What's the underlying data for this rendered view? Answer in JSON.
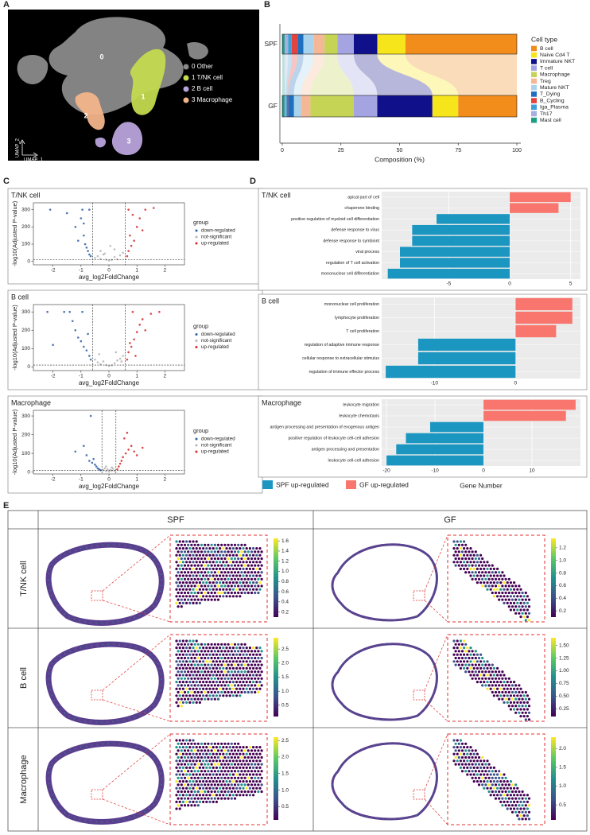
{
  "panel_labels": [
    "A",
    "B",
    "C",
    "D",
    "E"
  ],
  "umap": {
    "xlabel": "UMAP_1",
    "ylabel": "UMAP_2",
    "clusters": [
      {
        "id": "0",
        "label": "0 Other",
        "color": "#8a8a8a"
      },
      {
        "id": "1",
        "label": "1 T/NK cell",
        "color": "#c3d94e"
      },
      {
        "id": "2",
        "label": "2 B cell",
        "color": "#b9a3dc"
      },
      {
        "id": "3",
        "label": "3 Macrophage",
        "color": "#f3b48a"
      }
    ]
  },
  "composition": {
    "type": "bar",
    "orientation": "horizontal",
    "stacked": true,
    "categories": [
      "SPF",
      "GF"
    ],
    "legend_title": "Cell type",
    "xlabel": "Composition (%)",
    "xlim": [
      0,
      100
    ],
    "xticks": [
      0,
      25,
      50,
      75,
      100
    ],
    "series": [
      {
        "name": "Mast cell",
        "color": "#1a9e86",
        "values": [
          1,
          1
        ]
      },
      {
        "name": "Th17",
        "color": "#a7aee0",
        "values": [
          1.5,
          0.5
        ]
      },
      {
        "name": "Iga_Plasma",
        "color": "#3d9fd6",
        "values": [
          1.5,
          0.5
        ]
      },
      {
        "name": "B_Cycling",
        "color": "#e2433f",
        "values": [
          2.5,
          0.5
        ]
      },
      {
        "name": "T_Dying",
        "color": "#1f6fbf",
        "values": [
          2.5,
          2.5
        ]
      },
      {
        "name": "Mature NKT",
        "color": "#a9d3ec",
        "values": [
          4.5,
          3
        ]
      },
      {
        "name": "Treg",
        "color": "#f5b896",
        "values": [
          4.5,
          4
        ]
      },
      {
        "name": "Macrophage",
        "color": "#c5d455",
        "values": [
          5.5,
          18.5
        ]
      },
      {
        "name": "T cell",
        "color": "#a4a4e3",
        "values": [
          7,
          10
        ]
      },
      {
        "name": "Immature NKT",
        "color": "#10108a",
        "values": [
          10,
          23.5
        ]
      },
      {
        "name": "Naive Cd4 T",
        "color": "#f7e51b",
        "values": [
          12,
          11
        ]
      },
      {
        "name": "B cell",
        "color": "#f28c1b",
        "values": [
          47.5,
          25
        ]
      }
    ]
  },
  "volcano": [
    {
      "title": "T/NK cell",
      "type": "scatter",
      "xlabel": "avg_log2FoldChange",
      "ylabel": "-log10(Adjusted P-value)",
      "xlim": [
        -2.7,
        2.7
      ],
      "xticks": [
        -2,
        -1,
        0,
        1,
        2
      ],
      "ylim": [
        -20,
        340
      ],
      "yticks": [
        0,
        100,
        200,
        300
      ],
      "vlines": [
        -0.58,
        0.58
      ],
      "hline": 10,
      "legend_title": "group",
      "series": [
        {
          "name": "down-regulated",
          "color": "#2d5fa6",
          "x": [
            -2.1,
            -1.5,
            -1.2,
            -1.0,
            -0.9,
            -0.85,
            -0.8,
            -0.75,
            -0.7,
            -0.65,
            -0.9,
            -1.1,
            -0.95,
            -0.7
          ],
          "y": [
            300,
            280,
            200,
            250,
            150,
            100,
            80,
            60,
            40,
            30,
            220,
            120,
            300,
            300
          ]
        },
        {
          "name": "not-significant",
          "color": "#b5b5b5",
          "x": [
            -0.5,
            -0.4,
            -0.3,
            -0.2,
            -0.1,
            0,
            0.1,
            0.2,
            0.3,
            0.4,
            0.5,
            -0.3,
            0.2,
            0.05,
            -0.15
          ],
          "y": [
            20,
            30,
            15,
            40,
            10,
            5,
            8,
            25,
            12,
            35,
            50,
            60,
            70,
            90,
            45
          ]
        },
        {
          "name": "up-regulated",
          "color": "#d42a2a",
          "x": [
            0.65,
            0.7,
            0.8,
            0.9,
            1.0,
            1.1,
            1.3,
            1.6,
            0.75,
            0.85,
            1.2,
            0.7
          ],
          "y": [
            30,
            60,
            90,
            120,
            200,
            250,
            300,
            310,
            150,
            270,
            180,
            300
          ]
        }
      ]
    },
    {
      "title": "B cell",
      "type": "scatter",
      "xlabel": "avg_log2FoldChange",
      "ylabel": "-log10(Adjusted P-value)",
      "xlim": [
        -2.7,
        2.7
      ],
      "xticks": [
        -2,
        -1,
        0,
        1,
        2
      ],
      "ylim": [
        -20,
        340
      ],
      "yticks": [
        0,
        100,
        200,
        300
      ],
      "vlines": [
        -0.58,
        0.58
      ],
      "hline": 10,
      "legend_title": "group",
      "series": [
        {
          "name": "down-regulated",
          "color": "#2d5fa6",
          "x": [
            -2.2,
            -2.0,
            -1.6,
            -1.4,
            -1.2,
            -1.1,
            -1.0,
            -0.9,
            -0.8,
            -0.7,
            -0.65,
            -1.3,
            -0.95,
            -0.75
          ],
          "y": [
            300,
            120,
            300,
            300,
            200,
            160,
            140,
            110,
            90,
            60,
            40,
            250,
            300,
            180
          ]
        },
        {
          "name": "not-significant",
          "color": "#b5b5b5",
          "x": [
            -0.5,
            -0.4,
            -0.3,
            -0.2,
            -0.1,
            0,
            0.1,
            0.2,
            0.3,
            0.4,
            0.5,
            -0.35,
            0.25,
            0.45
          ],
          "y": [
            40,
            25,
            15,
            30,
            10,
            5,
            8,
            20,
            35,
            45,
            60,
            70,
            80,
            30
          ]
        },
        {
          "name": "up-regulated",
          "color": "#d42a2a",
          "x": [
            0.65,
            0.7,
            0.8,
            0.9,
            1.0,
            1.1,
            1.2,
            1.5,
            1.8,
            0.75,
            0.85,
            1.3,
            0.95
          ],
          "y": [
            40,
            80,
            110,
            150,
            190,
            230,
            260,
            290,
            300,
            130,
            300,
            200,
            60
          ]
        }
      ]
    },
    {
      "title": "Macrophage",
      "type": "scatter",
      "xlabel": "avg_log2FoldChange",
      "ylabel": "-log10(Adjusted P-value)",
      "xlim": [
        -2.7,
        2.7
      ],
      "xticks": [
        -2,
        -1,
        0,
        1,
        2
      ],
      "ylim": [
        -10,
        330
      ],
      "yticks": [
        0,
        100,
        200,
        300
      ],
      "vlines": [
        -0.25,
        0.25
      ],
      "hline": 10,
      "legend_title": "group",
      "series": [
        {
          "name": "down-regulated",
          "color": "#2d5fa6",
          "x": [
            -1.2,
            -0.9,
            -0.8,
            -0.7,
            -0.6,
            -0.5,
            -0.45,
            -0.4,
            -0.35,
            -0.3,
            -0.55,
            -0.65
          ],
          "y": [
            110,
            140,
            90,
            60,
            50,
            40,
            30,
            20,
            15,
            10,
            70,
            300
          ]
        },
        {
          "name": "not-significant",
          "color": "#b5b5b5",
          "x": [
            -0.2,
            -0.15,
            -0.1,
            -0.05,
            0,
            0.05,
            0.1,
            0.15,
            0.2,
            -0.1,
            0.1
          ],
          "y": [
            10,
            20,
            5,
            15,
            3,
            12,
            8,
            18,
            6,
            30,
            25
          ]
        },
        {
          "name": "up-regulated",
          "color": "#d42a2a",
          "x": [
            0.3,
            0.35,
            0.4,
            0.45,
            0.5,
            0.6,
            0.7,
            0.8,
            0.9,
            1.0,
            1.2,
            0.55,
            0.65
          ],
          "y": [
            15,
            30,
            45,
            60,
            80,
            100,
            120,
            140,
            110,
            90,
            130,
            180,
            210
          ]
        }
      ]
    }
  ],
  "go": [
    {
      "title": "T/NK cell",
      "type": "bar",
      "categories": [
        "apical part of cell",
        "chaperone binding",
        "positive regulation of myeloid cell differentiation",
        "defense response to virus",
        "defense response to symbiont",
        "viral process",
        "regulation of T cell activation",
        "mononuclear cell differentiation"
      ],
      "values": [
        5,
        4,
        -6,
        -8,
        -8,
        -9,
        -9,
        -10
      ],
      "xlim": [
        -10.5,
        5.8
      ],
      "xticks": [
        -5,
        0,
        5
      ]
    },
    {
      "title": "B cell",
      "type": "bar",
      "categories": [
        "mononuclear cell proliferation",
        "lymphocyte proliferation",
        "T cell proliferation",
        "regulation of adaptive immune response",
        "cellular response to extracellular stimulus",
        "regulation of immune effector process"
      ],
      "values": [
        7,
        7,
        5,
        -12,
        -12,
        -16
      ],
      "xlim": [
        -16.5,
        8
      ],
      "xticks": [
        -10,
        0
      ]
    },
    {
      "title": "Macrophage",
      "type": "bar",
      "categories": [
        "leukocyte migration",
        "leukocyte chemotaxis",
        "antigen processing and presentation of exogenous antigen",
        "positive regulation of leukocyte cell-cell adhesion",
        "antigen processing and presentation",
        "leukocyte cell-cell adhesion"
      ],
      "values": [
        19,
        17,
        -11,
        -16,
        -18,
        -20
      ],
      "xlim": [
        -21,
        20
      ],
      "xticks": [
        -20,
        -10,
        0,
        10
      ]
    }
  ],
  "go_legend": [
    {
      "name": "SPF up-regulated",
      "color": "#1b96c1"
    },
    {
      "name": "GF up-regulated",
      "color": "#f8766d"
    }
  ],
  "go_xlabel": "Gene Number",
  "spatial": {
    "columns": [
      "SPF",
      "GF"
    ],
    "rows": [
      "T/NK cell",
      "B cell",
      "Macrophage"
    ],
    "colorbars": [
      [
        {
          "clim": [
            0.1,
            1.65
          ],
          "ticks": [
            0.2,
            0.4,
            0.6,
            0.8,
            {
              "value": 1,
              "label": "1.0"
            },
            1.2,
            1.4,
            1.6
          ]
        },
        {
          "clim": [
            0.1,
            1.35
          ],
          "ticks": [
            0.2,
            0.4,
            0.6,
            0.8,
            {
              "value": 1,
              "label": "1.0"
            },
            1.2
          ]
        }
      ],
      [
        {
          "clim": [
            0.1,
            2.9
          ],
          "ticks": [
            0.5,
            {
              "value": 1,
              "label": "1.0"
            },
            1.5,
            {
              "value": 2,
              "label": "2.0"
            },
            2.5
          ]
        },
        {
          "clim": [
            0.1,
            1.65
          ],
          "ticks": [
            0.25,
            {
              "value": 0.5,
              "label": "0.50"
            },
            0.75,
            {
              "value": 1,
              "label": "1.00"
            },
            1.25,
            {
              "value": 1.5,
              "label": "1.50"
            }
          ]
        }
      ],
      [
        {
          "clim": [
            0.1,
            2.6
          ],
          "ticks": [
            0.5,
            {
              "value": 1,
              "label": "1.0"
            },
            1.5,
            {
              "value": 2,
              "label": "2.0"
            },
            2.5
          ]
        },
        {
          "clim": [
            0.1,
            2.3
          ],
          "ticks": [
            0.5,
            {
              "value": 1,
              "label": "1.0"
            },
            1.5,
            {
              "value": 2,
              "label": "2.0"
            }
          ]
        }
      ]
    ]
  }
}
